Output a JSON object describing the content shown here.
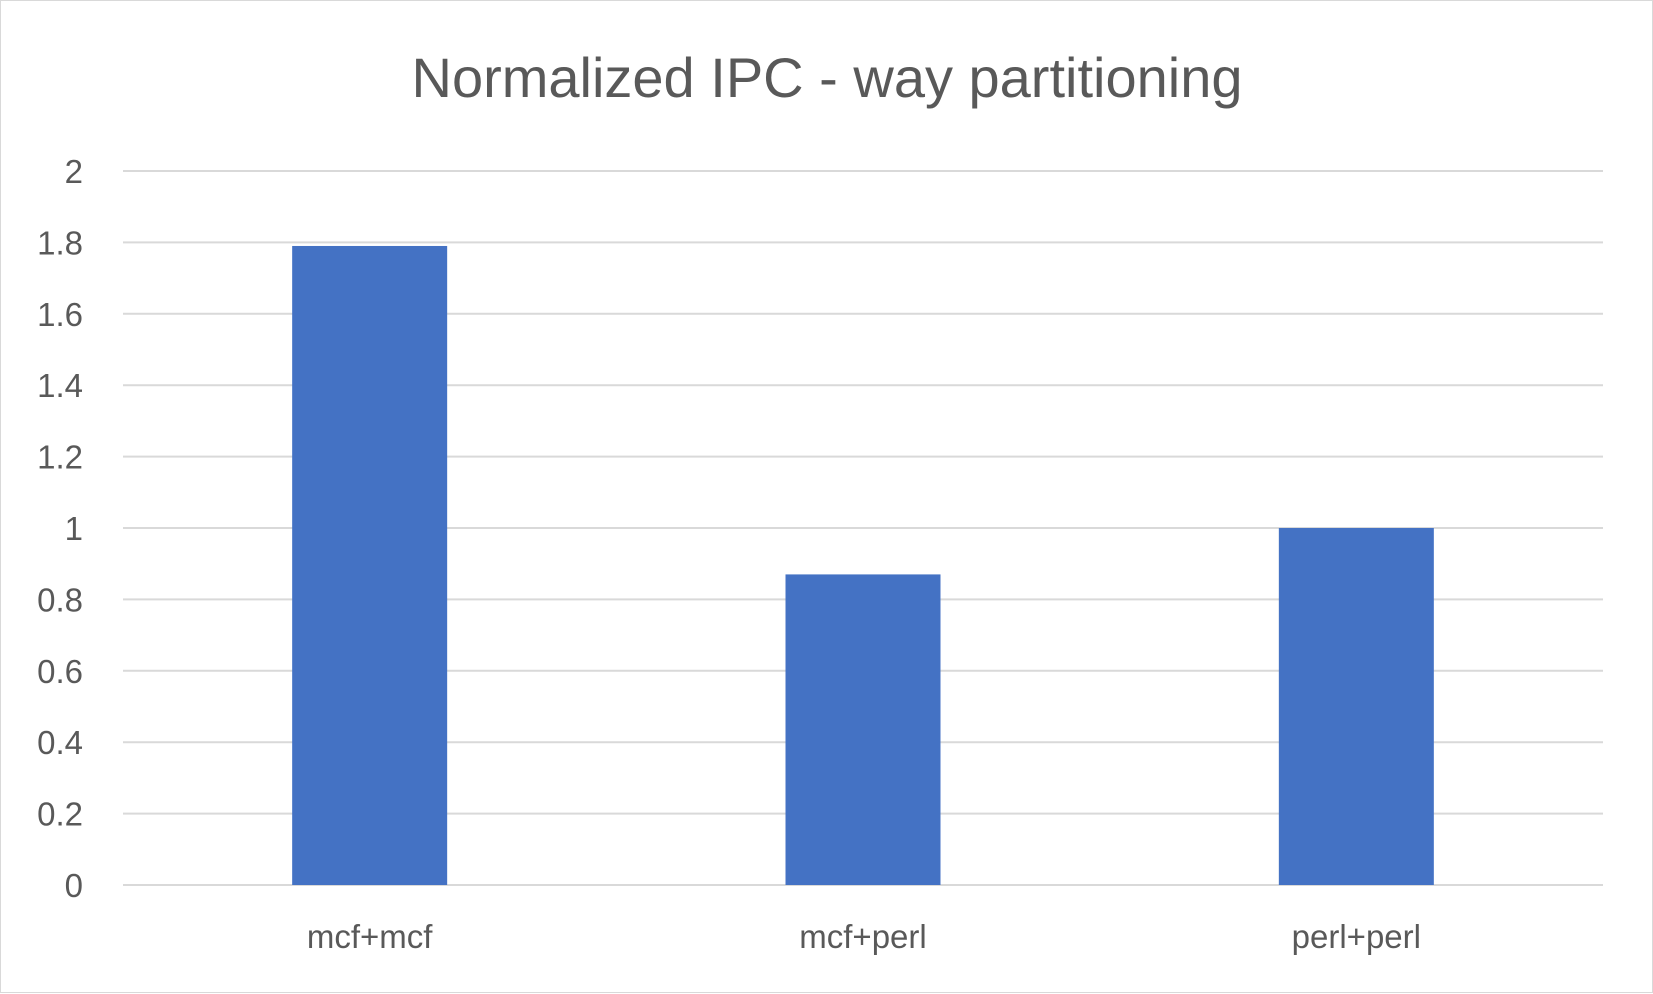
{
  "chart_data": {
    "type": "bar",
    "title": "Normalized IPC - way partitioning",
    "xlabel": "",
    "ylabel": "",
    "categories": [
      "mcf+mcf",
      "mcf+perl",
      "perl+perl"
    ],
    "values": [
      1.79,
      0.87,
      1.0
    ],
    "ylim": [
      0,
      2
    ],
    "yticks": [
      0,
      0.2,
      0.4,
      0.6,
      0.8,
      1,
      1.2,
      1.4,
      1.6,
      1.8,
      2
    ],
    "ytick_labels": [
      "0",
      "0.2",
      "0.4",
      "0.6",
      "0.8",
      "1",
      "1.2",
      "1.4",
      "1.6",
      "1.8",
      "2"
    ],
    "grid": true,
    "legend": "none",
    "bar_color": "#4472C4",
    "grid_color": "#d9d9d9",
    "text_color": "#595959"
  }
}
